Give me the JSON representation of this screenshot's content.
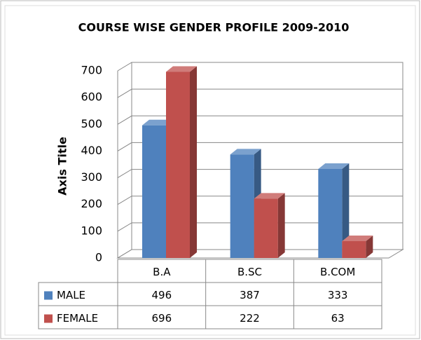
{
  "chart_data": {
    "type": "bar3d",
    "title": "COURSE WISE GENDER PROFILE 2009-2010",
    "y_label": "Axis Title",
    "categories": [
      "B.A",
      "B.SC",
      "B.COM"
    ],
    "series": [
      {
        "name": "MALE",
        "color": "#4f81bd",
        "values": [
          496,
          387,
          333
        ]
      },
      {
        "name": "FEMALE",
        "color": "#c0504d",
        "values": [
          696,
          222,
          63
        ]
      }
    ],
    "ylim": [
      0,
      700
    ],
    "yticks": [
      0,
      100,
      200,
      300,
      400,
      500,
      600,
      700
    ],
    "grid": true,
    "legend": "table"
  }
}
